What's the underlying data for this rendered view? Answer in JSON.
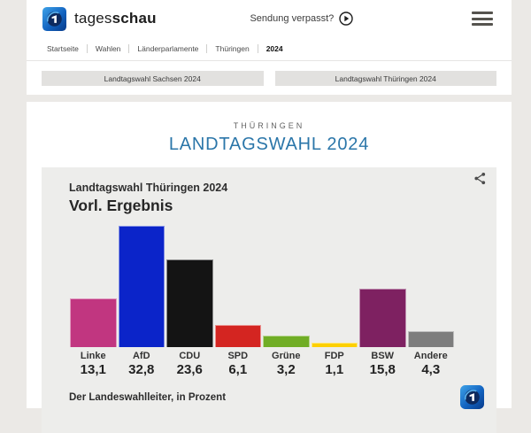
{
  "header": {
    "brand_regular": "tages",
    "brand_bold": "schau",
    "sendung_verpasst": "Sendung verpasst?",
    "breadcrumb": [
      {
        "label": "Startseite"
      },
      {
        "label": "Wahlen"
      },
      {
        "label": "Länderparlamente"
      },
      {
        "label": "Thüringen"
      },
      {
        "label": "2024",
        "current": true
      }
    ]
  },
  "nav_buttons": [
    {
      "label": "Landtagswahl Sachsen 2024"
    },
    {
      "label": "Landtagswahl Thüringen 2024"
    }
  ],
  "page": {
    "kicker": "THÜRINGEN",
    "title": "LANDTAGSWAHL 2024"
  },
  "chart": {
    "title": "Landtagswahl Thüringen 2024",
    "subtitle": "Vorl. Ergebnis",
    "source": "Der Landeswahlleiter, in Prozent"
  },
  "chart_data": {
    "type": "bar",
    "title": "Landtagswahl Thüringen 2024",
    "subtitle": "Vorl. Ergebnis",
    "categories": [
      "Linke",
      "AfD",
      "CDU",
      "SPD",
      "Grüne",
      "FDP",
      "BSW",
      "Andere"
    ],
    "values": [
      13.1,
      32.8,
      23.6,
      6.1,
      3.2,
      1.1,
      15.8,
      4.3
    ],
    "value_labels": [
      "13,1",
      "32,8",
      "23,6",
      "6,1",
      "3,2",
      "1,1",
      "15,8",
      "4,3"
    ],
    "colors": [
      "#c13680",
      "#0b24c9",
      "#141414",
      "#d42521",
      "#70ad25",
      "#fdd000",
      "#7e2161",
      "#7d7d7d"
    ],
    "unit": "Prozent",
    "ylim": [
      0,
      32.8
    ],
    "source": "Der Landeswahlleiter, in Prozent",
    "grid": false,
    "legend": false
  },
  "colors": {
    "accent_blue": "#2b76a9",
    "panel_bg": "#ededeb",
    "page_bg": "#ebe9e6"
  }
}
